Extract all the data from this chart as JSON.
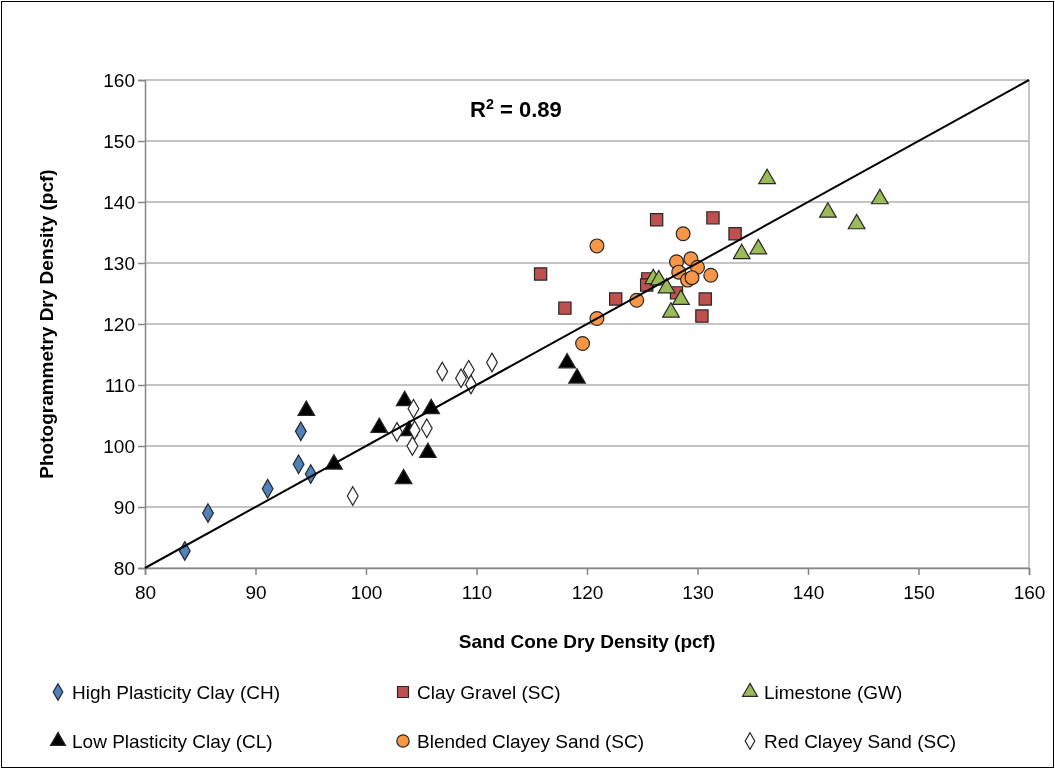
{
  "chart_data": {
    "type": "scatter",
    "xlabel": "Sand Cone Dry Density (pcf)",
    "ylabel": "Photogrammetry Dry Density (pcf)",
    "xlim": [
      80,
      160
    ],
    "ylim": [
      80,
      160
    ],
    "xticks": [
      80,
      90,
      100,
      110,
      120,
      130,
      140,
      150,
      160
    ],
    "yticks": [
      80,
      90,
      100,
      110,
      120,
      130,
      140,
      150,
      160
    ],
    "grid": "y",
    "legend": "bottom",
    "annotations": [
      {
        "text": "R$^{2}$ = 0.89"
      }
    ],
    "series": [
      {
        "name": "High Plasticity Clay (CH)",
        "color": "#4f81bd",
        "marker": "diamond",
        "x": [
          83.6,
          85.7,
          91.1,
          93.9,
          94.1,
          95.0
        ],
        "values": [
          82.8,
          89.0,
          93.0,
          97.0,
          102.4,
          95.4
        ]
      },
      {
        "name": "Clay Gravel (SC)",
        "color": "#c0504d",
        "marker": "square",
        "x": [
          115.8,
          118.0,
          122.6,
          126.3,
          125.5,
          125.4,
          128.1,
          130.7,
          130.4,
          131.4,
          133.4
        ],
        "values": [
          128.2,
          122.6,
          124.1,
          137.1,
          127.4,
          126.4,
          125.1,
          124.1,
          121.3,
          137.4,
          134.8
        ]
      },
      {
        "name": "Limestone (GW)",
        "color": "#9bbb59",
        "marker": "triangle",
        "x": [
          126.0,
          126.5,
          127.2,
          128.5,
          127.6,
          136.3,
          134.0,
          135.5,
          141.8,
          144.4,
          146.5
        ],
        "values": [
          127.4,
          127.2,
          125.9,
          124.0,
          121.9,
          143.8,
          131.5,
          132.3,
          138.3,
          136.4,
          140.5
        ]
      },
      {
        "name": "Low Plasticity Clay (CL)",
        "color": "#000000",
        "marker": "triangle",
        "x": [
          94.6,
          97.1,
          101.2,
          103.5,
          103.9,
          103.4,
          105.9,
          105.6,
          118.2,
          119.1
        ],
        "values": [
          105.8,
          97.0,
          103.0,
          107.4,
          102.5,
          94.6,
          106.1,
          98.9,
          113.6,
          111.1
        ]
      },
      {
        "name": "Blended Clayey Sand (SC)",
        "color": "#f79646",
        "marker": "circle",
        "x": [
          120.9,
          120.9,
          119.6,
          124.5,
          128.7,
          128.1,
          128.3,
          129.4,
          130.0,
          129.1,
          129.5,
          131.2
        ],
        "values": [
          132.8,
          120.9,
          116.8,
          123.9,
          134.8,
          130.2,
          128.5,
          130.7,
          129.3,
          127.2,
          127.6,
          128.0
        ]
      },
      {
        "name": "Red Clayey Sand (SC)",
        "color": "#ffffff",
        "marker": "diamond",
        "x": [
          98.8,
          102.8,
          104.3,
          104.4,
          105.5,
          104.2,
          106.9,
          108.6,
          109.3,
          109.5,
          111.4
        ],
        "values": [
          91.8,
          102.3,
          106.1,
          102.6,
          102.9,
          100.0,
          112.2,
          111.1,
          112.5,
          110.1,
          113.7
        ]
      },
      {
        "type": "line",
        "color": "#000000",
        "marker": "none",
        "x": [
          80,
          160
        ],
        "values": [
          80,
          160
        ]
      }
    ]
  }
}
